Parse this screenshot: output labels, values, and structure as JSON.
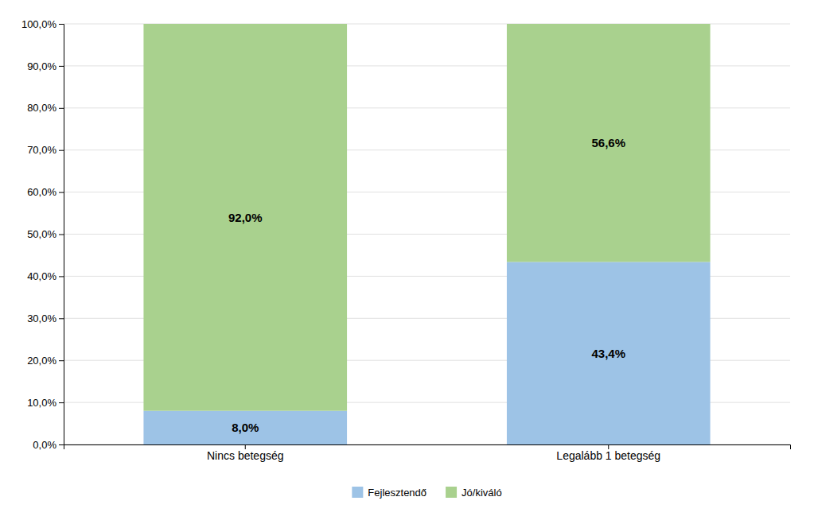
{
  "chart_data": {
    "type": "bar",
    "stacked": true,
    "categories": [
      "Nincs betegség",
      "Legalább 1 betegség"
    ],
    "series": [
      {
        "name": "Fejlesztendő",
        "color": "#9DC3E6",
        "values": [
          8.0,
          43.4
        ],
        "value_labels": [
          "8,0%",
          "43,4%"
        ]
      },
      {
        "name": "Jó/kiváló",
        "color": "#A9D18E",
        "values": [
          92.0,
          56.6
        ],
        "value_labels": [
          "92,0%",
          "56,6%"
        ]
      }
    ],
    "ylim": [
      0,
      100
    ],
    "yticks": [
      {
        "value": 0,
        "label": "0,0%"
      },
      {
        "value": 10,
        "label": "10,0%"
      },
      {
        "value": 20,
        "label": "20,0%"
      },
      {
        "value": 30,
        "label": "30,0%"
      },
      {
        "value": 40,
        "label": "40,0%"
      },
      {
        "value": 50,
        "label": "50,0%"
      },
      {
        "value": 60,
        "label": "60,0%"
      },
      {
        "value": 70,
        "label": "70,0%"
      },
      {
        "value": 80,
        "label": "80,0%"
      },
      {
        "value": 90,
        "label": "90,0%"
      },
      {
        "value": 100,
        "label": "100,0%"
      }
    ],
    "grid": true,
    "legend": "bottom",
    "data_labels": true
  }
}
